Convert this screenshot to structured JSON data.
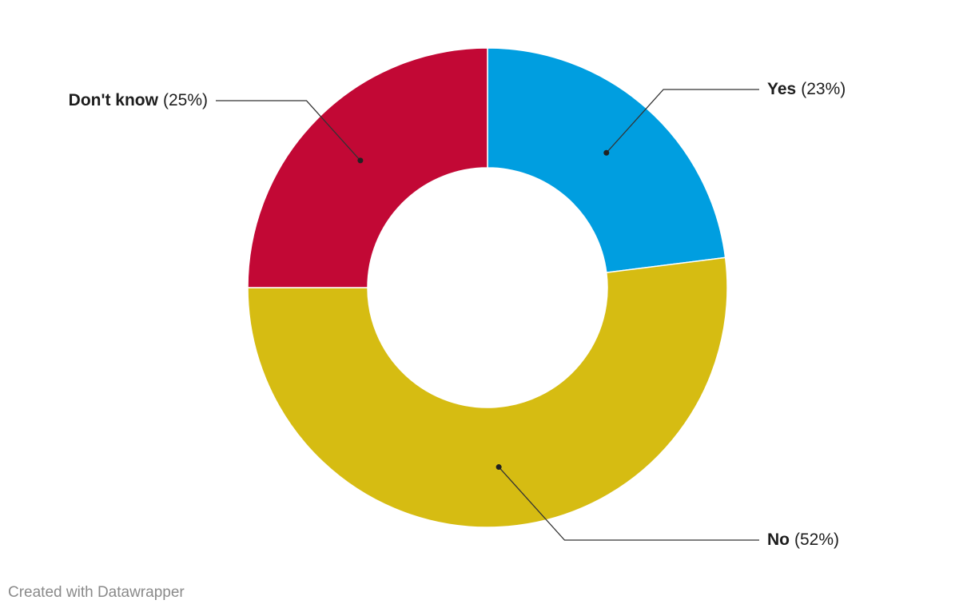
{
  "chart_data": {
    "type": "donut",
    "categories": [
      "Yes",
      "No",
      "Don't know"
    ],
    "values": [
      23,
      52,
      25
    ],
    "value_labels": [
      "(23%)",
      "(52%)",
      "(25%)"
    ],
    "colors": [
      "#009ee0",
      "#d6bc12",
      "#c20835"
    ],
    "source": "Created with Datawrapper"
  }
}
